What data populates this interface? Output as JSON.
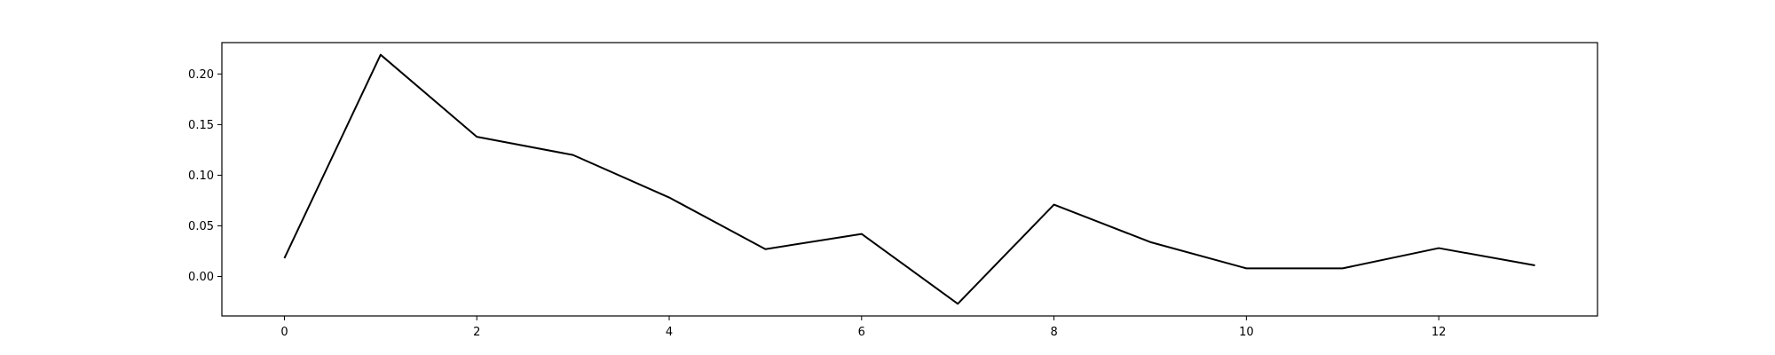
{
  "chart_data": {
    "type": "line",
    "title": "",
    "xlabel": "",
    "ylabel": "",
    "x": [
      0,
      1,
      2,
      3,
      4,
      5,
      6,
      7,
      8,
      9,
      10,
      11,
      12,
      13
    ],
    "series": [
      {
        "values": [
          0.018,
          0.219,
          0.138,
          0.12,
          0.078,
          0.027,
          0.042,
          -0.027,
          0.071,
          0.034,
          0.008,
          0.008,
          0.028,
          0.011
        ],
        "color": "#000000"
      }
    ],
    "xlim": [
      -0.65,
      13.65
    ],
    "ylim": [
      -0.039,
      0.231
    ],
    "xticks": [
      0,
      2,
      4,
      6,
      8,
      10,
      12
    ],
    "xtick_labels": [
      "0",
      "2",
      "4",
      "6",
      "8",
      "10",
      "12"
    ],
    "yticks": [
      0.0,
      0.05,
      0.1,
      0.15,
      0.2
    ],
    "ytick_labels": [
      "0.00",
      "0.05",
      "0.10",
      "0.15",
      "0.20"
    ],
    "grid": false,
    "legend": "none"
  }
}
